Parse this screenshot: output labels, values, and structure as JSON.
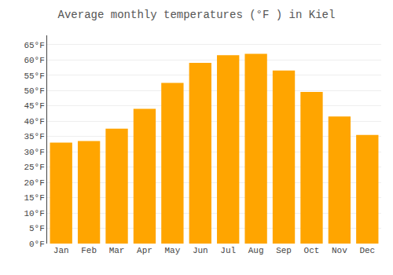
{
  "chart_data": {
    "type": "bar",
    "title": "Average monthly temperatures (°F ) in Kiel",
    "categories": [
      "Jan",
      "Feb",
      "Mar",
      "Apr",
      "May",
      "Jun",
      "Jul",
      "Aug",
      "Sep",
      "Oct",
      "Nov",
      "Dec"
    ],
    "values": [
      33,
      33.5,
      37.5,
      44,
      52.5,
      59,
      61.5,
      62,
      56.5,
      49.5,
      41.5,
      35.5
    ],
    "color": "#FFA500",
    "ylim": [
      0,
      68
    ],
    "yticks": [
      {
        "value": 0,
        "label": "0°F"
      },
      {
        "value": 5,
        "label": "5°F"
      },
      {
        "value": 10,
        "label": "10°F"
      },
      {
        "value": 15,
        "label": "15°F"
      },
      {
        "value": 20,
        "label": "20°F"
      },
      {
        "value": 25,
        "label": "25°F"
      },
      {
        "value": 30,
        "label": "30°F"
      },
      {
        "value": 35,
        "label": "35°F"
      },
      {
        "value": 40,
        "label": "40°F"
      },
      {
        "value": 45,
        "label": "45°F"
      },
      {
        "value": 50,
        "label": "50°F"
      },
      {
        "value": 55,
        "label": "55°F"
      },
      {
        "value": 60,
        "label": "60°F"
      },
      {
        "value": 65,
        "label": "65°F"
      }
    ],
    "grid": true
  }
}
